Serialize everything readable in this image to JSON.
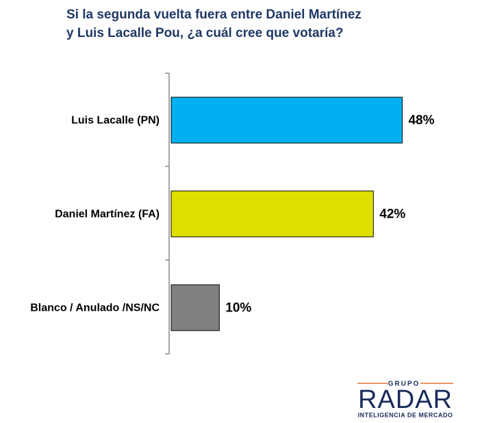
{
  "chart_data": {
    "type": "bar",
    "orientation": "horizontal",
    "title": "Si la segunda vuelta fuera entre Daniel Martínez\ny Luis Lacalle Pou, ¿a cuál cree que votaría?",
    "categories": [
      "Luis Lacalle (PN)",
      "Daniel Martínez (FA)",
      "Blanco / Anulado /NS/NC"
    ],
    "values": [
      48,
      42,
      10
    ],
    "value_labels": [
      "48%",
      "42%",
      "10%"
    ],
    "colors": [
      "#00b0f0",
      "#e0e000",
      "#808080"
    ]
  },
  "logo": {
    "top": "GRUPO",
    "name": "RADAR",
    "tagline": "INTELIGENCIA DE MERCADO"
  }
}
